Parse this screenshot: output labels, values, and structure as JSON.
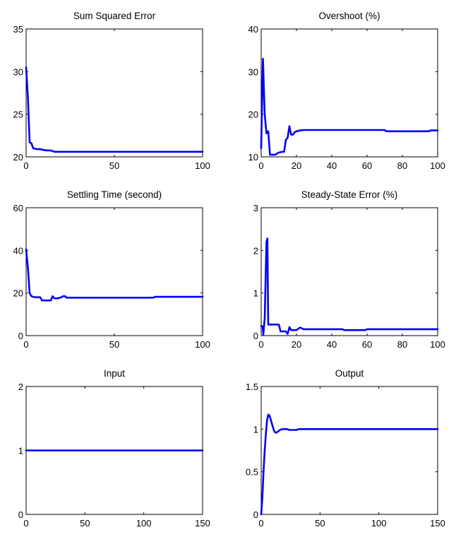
{
  "chart_data": [
    {
      "type": "line",
      "title": "Sum Squared Error",
      "xlabel": "",
      "ylabel": "",
      "xlim": [
        0,
        100
      ],
      "ylim": [
        20,
        35
      ],
      "xticks": [
        0,
        50,
        100
      ],
      "yticks": [
        20,
        25,
        30,
        35
      ],
      "grid": false,
      "color": "#0000ff",
      "series": [
        {
          "x": [
            0,
            1,
            2,
            3,
            4,
            5,
            6,
            8,
            10,
            12,
            14,
            16,
            20,
            30,
            40,
            50,
            60,
            70,
            80,
            90,
            100
          ],
          "y": [
            30.5,
            27.0,
            21.7,
            21.6,
            21.0,
            20.95,
            20.9,
            20.9,
            20.8,
            20.75,
            20.75,
            20.6,
            20.6,
            20.6,
            20.6,
            20.6,
            20.6,
            20.6,
            20.6,
            20.6,
            20.6
          ]
        }
      ]
    },
    {
      "type": "line",
      "title": "Overshoot (%)",
      "xlabel": "",
      "ylabel": "",
      "xlim": [
        0,
        100
      ],
      "ylim": [
        10,
        40
      ],
      "xticks": [
        0,
        20,
        40,
        60,
        80,
        100
      ],
      "yticks": [
        10,
        20,
        30,
        40
      ],
      "grid": false,
      "color": "#0000ff",
      "series": [
        {
          "x": [
            0,
            1,
            2,
            3,
            4,
            5,
            6,
            8,
            9,
            10,
            12,
            13,
            14,
            15,
            16,
            17,
            18,
            19,
            20,
            22,
            24,
            30,
            40,
            50,
            60,
            70,
            71,
            80,
            90,
            95,
            96,
            100
          ],
          "y": [
            12,
            33,
            20,
            15.5,
            16,
            10.5,
            10.5,
            10.5,
            10.8,
            11,
            11.2,
            11.2,
            14,
            14.5,
            17.2,
            15.2,
            15.2,
            15.8,
            16,
            16.2,
            16.3,
            16.3,
            16.3,
            16.3,
            16.3,
            16.3,
            16,
            16,
            16,
            16,
            16.2,
            16.2
          ]
        }
      ]
    },
    {
      "type": "line",
      "title": "Settling Time (second)",
      "xlabel": "",
      "ylabel": "",
      "xlim": [
        0,
        100
      ],
      "ylim": [
        0,
        60
      ],
      "xticks": [
        0,
        50,
        100
      ],
      "yticks": [
        0,
        20,
        40,
        60
      ],
      "grid": false,
      "color": "#0000ff",
      "series": [
        {
          "x": [
            0,
            1,
            2,
            3,
            5,
            8,
            9,
            10,
            12,
            14,
            15,
            16,
            18,
            20,
            21,
            22,
            23,
            30,
            50,
            70,
            72,
            73,
            80,
            90,
            100
          ],
          "y": [
            40.5,
            32,
            20,
            18.5,
            18,
            18,
            16.5,
            16.5,
            16.5,
            16.5,
            18.5,
            17.5,
            17.5,
            18,
            18.5,
            18.5,
            17.8,
            17.8,
            17.8,
            17.8,
            17.8,
            18.2,
            18.2,
            18.2,
            18.2
          ]
        }
      ]
    },
    {
      "type": "line",
      "title": "Steady-State Error (%)",
      "xlabel": "",
      "ylabel": "",
      "xlim": [
        0,
        100
      ],
      "ylim": [
        0,
        3
      ],
      "xticks": [
        0,
        20,
        40,
        60,
        80,
        100
      ],
      "yticks": [
        0,
        1,
        2,
        3
      ],
      "grid": false,
      "color": "#0000ff",
      "series": [
        {
          "x": [
            0,
            0.8,
            1.2,
            2,
            3,
            3.5,
            4,
            5,
            6,
            8,
            10,
            11,
            12,
            14,
            15,
            16,
            17,
            18,
            20,
            22,
            24,
            30,
            40,
            46,
            47,
            50,
            58,
            59,
            60,
            70,
            80,
            90,
            100
          ],
          "y": [
            0.22,
            0.22,
            0.02,
            0.4,
            2.2,
            2.28,
            0.26,
            0.26,
            0.26,
            0.26,
            0.26,
            0.1,
            0.1,
            0.1,
            0.04,
            0.2,
            0.13,
            0.13,
            0.13,
            0.19,
            0.15,
            0.15,
            0.15,
            0.15,
            0.13,
            0.13,
            0.13,
            0.13,
            0.15,
            0.15,
            0.15,
            0.15,
            0.15
          ]
        }
      ]
    },
    {
      "type": "line",
      "title": "Input",
      "xlabel": "",
      "ylabel": "",
      "xlim": [
        0,
        150
      ],
      "ylim": [
        0,
        2
      ],
      "xticks": [
        0,
        50,
        100,
        150
      ],
      "yticks": [
        0,
        1,
        2
      ],
      "grid": false,
      "color": "#0000ff",
      "series": [
        {
          "x": [
            0,
            150
          ],
          "y": [
            1,
            1
          ]
        }
      ]
    },
    {
      "type": "line",
      "title": "Output",
      "xlabel": "",
      "ylabel": "",
      "xlim": [
        0,
        150
      ],
      "ylim": [
        0,
        1.5
      ],
      "xticks": [
        0,
        50,
        100,
        150
      ],
      "yticks": [
        0,
        0.5,
        1,
        1.5
      ],
      "grid": false,
      "color": "#0000ff",
      "series": [
        {
          "x": [
            0,
            1,
            2,
            3,
            4,
            5,
            6,
            7,
            8,
            9,
            10,
            11,
            12,
            13,
            14,
            16,
            18,
            20,
            22,
            24,
            26,
            28,
            30,
            32,
            34,
            40,
            60,
            80,
            100,
            120,
            150
          ],
          "y": [
            0,
            0.2,
            0.5,
            0.75,
            0.95,
            1.1,
            1.17,
            1.16,
            1.12,
            1.07,
            1.02,
            0.98,
            0.96,
            0.96,
            0.97,
            0.99,
            1.0,
            1.0,
            1.0,
            0.99,
            0.99,
            0.99,
            0.99,
            1.0,
            1.0,
            1.0,
            1.0,
            1.0,
            1.0,
            1.0,
            1.0
          ]
        }
      ]
    }
  ]
}
